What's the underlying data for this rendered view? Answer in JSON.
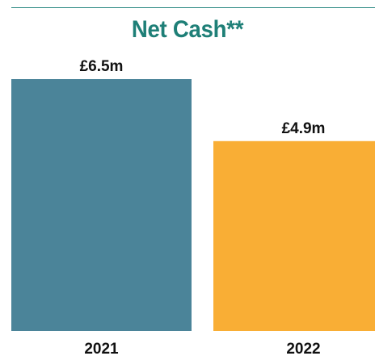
{
  "chart_data": {
    "type": "bar",
    "title": "Net Cash**",
    "categories": [
      "2021",
      "2022"
    ],
    "values": [
      6.5,
      4.9
    ],
    "value_labels": [
      "£6.5m",
      "£4.9m"
    ],
    "colors": [
      "#4b8499",
      "#f9ae35"
    ],
    "title_color": "#1e7f77",
    "ylim": [
      0,
      6.5
    ],
    "xlabel": "",
    "ylabel": "",
    "grid": false,
    "legend": "none"
  }
}
